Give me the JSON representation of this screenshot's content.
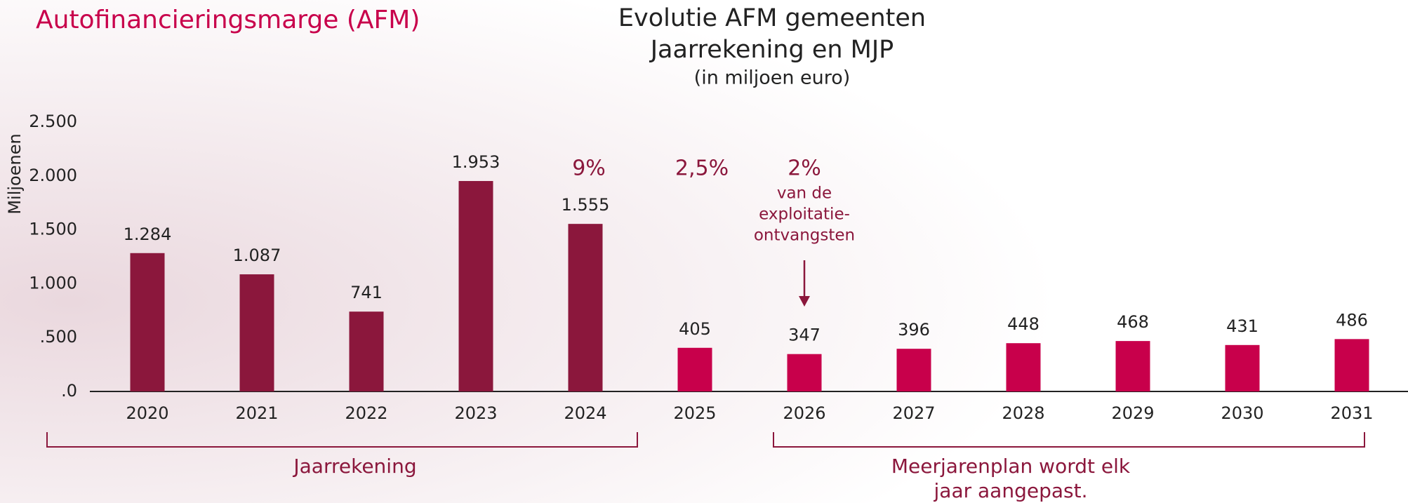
{
  "header": {
    "title": "Autofinancieringsmarge",
    "suffix": "(AFM)"
  },
  "chart_data": {
    "type": "bar",
    "title": "Evolutie AFM gemeenten",
    "subtitle": "Jaarrekening en MJP",
    "unit_note": "(in miljoen euro)",
    "y_label": "Miljoenen",
    "categories": [
      "2020",
      "2021",
      "2022",
      "2023",
      "2024",
      "2025",
      "2026",
      "2027",
      "2028",
      "2029",
      "2030",
      "2031"
    ],
    "values": [
      1284,
      1087,
      741,
      1953,
      1555,
      405,
      347,
      396,
      448,
      468,
      431,
      486
    ],
    "value_labels": [
      "1.284",
      "1.087",
      "741",
      "1.953",
      "1.555",
      "405",
      "347",
      "396",
      "448",
      "468",
      "431",
      "486"
    ],
    "colors": [
      "#8b173c",
      "#8b173c",
      "#8b173c",
      "#8b173c",
      "#8b173c",
      "#c8004b",
      "#c8004b",
      "#c8004b",
      "#c8004b",
      "#c8004b",
      "#c8004b",
      "#c8004b"
    ],
    "ylim": [
      0,
      2500
    ],
    "yticks": [
      {
        "value": 0,
        "label": ".0"
      },
      {
        "value": 500,
        "label": ".500"
      },
      {
        "value": 1000,
        "label": "1.000"
      },
      {
        "value": 1500,
        "label": "1.500"
      },
      {
        "value": 2000,
        "label": "2.000"
      },
      {
        "value": 2500,
        "label": "2.500"
      }
    ],
    "grid": false,
    "rates": [
      "9%",
      "2,5%",
      "2%"
    ],
    "rate_note": [
      "van de",
      "exploitatie-",
      "ontvangsten"
    ],
    "groups": [
      {
        "label": [
          "Jaarrekening"
        ]
      },
      {
        "label": [
          "Meerjarenplan wordt elk",
          "jaar aangepast."
        ]
      }
    ]
  }
}
